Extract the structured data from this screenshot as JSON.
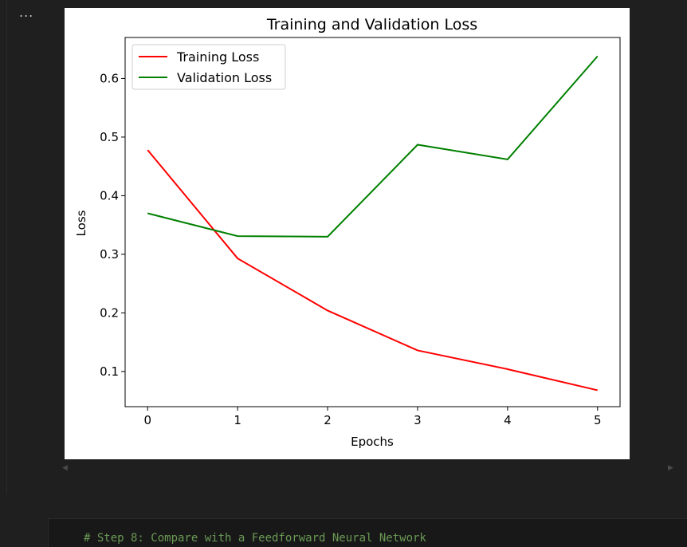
{
  "output_menu_label": "...",
  "chart_data": {
    "type": "line",
    "title": "Training and Validation Loss",
    "xlabel": "Epochs",
    "ylabel": "Loss",
    "x": [
      0,
      1,
      2,
      3,
      4,
      5
    ],
    "xticks": [
      "0",
      "1",
      "2",
      "3",
      "4",
      "5"
    ],
    "yticks": [
      "0.1",
      "0.2",
      "0.3",
      "0.4",
      "0.5",
      "0.6"
    ],
    "xlim": [
      -0.25,
      5.25
    ],
    "ylim": [
      0.04,
      0.67
    ],
    "grid": false,
    "legend_position": "upper-left",
    "series": [
      {
        "name": "Training Loss",
        "color": "#ff0000",
        "values": [
          0.478,
          0.293,
          0.204,
          0.136,
          0.104,
          0.068
        ]
      },
      {
        "name": "Validation Loss",
        "color": "#008000",
        "values": [
          0.37,
          0.331,
          0.33,
          0.487,
          0.462,
          0.638
        ]
      }
    ]
  },
  "code_cell": {
    "line": "# Step 8: Compare with a Feedforward Neural Network"
  }
}
